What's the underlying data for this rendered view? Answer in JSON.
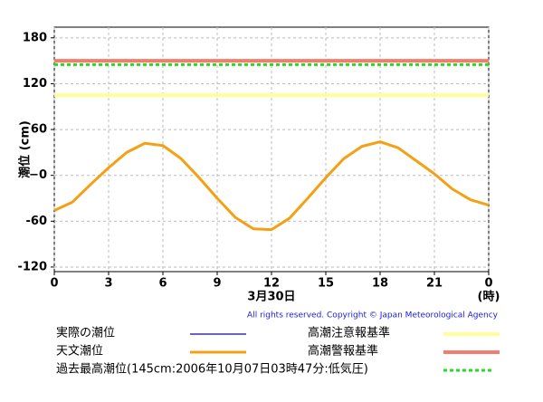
{
  "chart_data": {
    "type": "line",
    "ylabel": "潮位 (cm)",
    "xlabel": "3月30日",
    "xunit": "(時)",
    "copyright": "All rights reserved. Copyright © Japan Meteorological Agency",
    "x": [
      0,
      1,
      2,
      3,
      4,
      5,
      6,
      7,
      8,
      9,
      10,
      11,
      12,
      13,
      14,
      15,
      16,
      17,
      18,
      19,
      20,
      21,
      22,
      23,
      24
    ],
    "series": [
      {
        "name": "実際の潮位",
        "color": "#3a2fa8",
        "values": [
          null,
          null,
          null,
          null,
          null,
          null,
          null,
          null,
          null,
          null,
          null,
          null,
          null,
          null,
          null,
          null,
          null,
          null,
          null,
          null,
          null,
          null,
          null,
          null,
          null
        ]
      },
      {
        "name": "天文潮位",
        "color": "#f5a014",
        "values": [
          -46,
          -35,
          -12,
          10,
          30,
          42,
          39,
          22,
          -3,
          -30,
          -55,
          -70,
          -71,
          -56,
          -30,
          -3,
          22,
          38,
          44,
          36,
          19,
          2,
          -18,
          -32,
          -39
        ]
      }
    ],
    "reference_lines": [
      {
        "name": "高潮注意報基準",
        "value": 105,
        "color": "#ffff99",
        "style": "solid"
      },
      {
        "name": "高潮警報基準",
        "value": 150,
        "color": "#f47c6c",
        "style": "solid"
      },
      {
        "name": "過去最高潮位(145cm:2006年10月07日03時47分:低気圧)",
        "value": 145,
        "color": "#22dd22",
        "style": "dotted"
      }
    ],
    "xlim": [
      0,
      24
    ],
    "xticks": [
      0,
      3,
      6,
      9,
      12,
      15,
      18,
      21,
      {
        "value": 24,
        "label": "0"
      }
    ],
    "ylim": [
      -126,
      194
    ],
    "yticks": [
      180,
      120,
      60,
      {
        "value": 0,
        "label": "−0"
      },
      -60,
      -120
    ],
    "grid": true
  }
}
